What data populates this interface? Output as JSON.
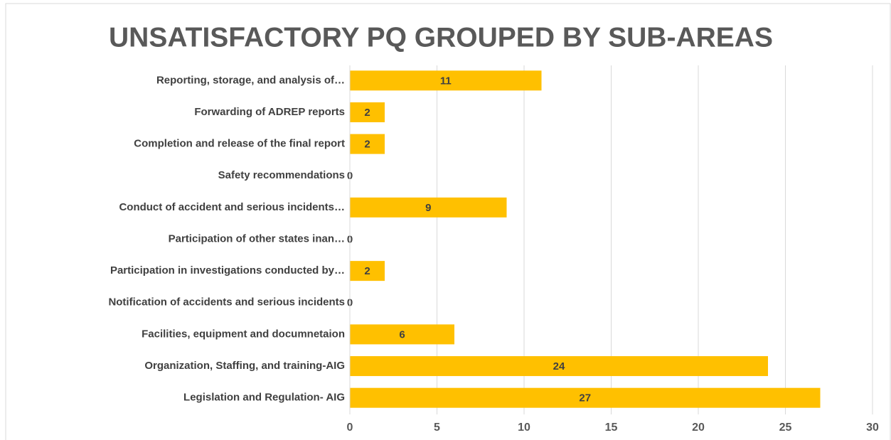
{
  "chart_data": {
    "type": "bar",
    "orientation": "horizontal",
    "title": "UNSATISFACTORY PQ GROUPED BY SUB-AREAS",
    "categories": [
      "Reporting, storage, and analysis of…",
      "Forwarding of ADREP reports",
      "Completion and release of the final report",
      "Safety recommendations",
      "Conduct of accident and serious incidents…",
      "Participation of other states inan…",
      "Participation in investigations conducted by…",
      "Notification of accidents and serious incidents",
      "Facilities, equipment and documnetaion",
      "Organization, Staffing, and training-AIG",
      "Legislation and Regulation- AIG"
    ],
    "values": [
      11,
      2,
      2,
      0,
      9,
      0,
      2,
      0,
      6,
      24,
      27
    ],
    "color": "#ffc000",
    "xlim": [
      0,
      30
    ],
    "xticks": [
      0,
      5,
      10,
      15,
      20,
      25,
      30
    ],
    "grid": true
  }
}
